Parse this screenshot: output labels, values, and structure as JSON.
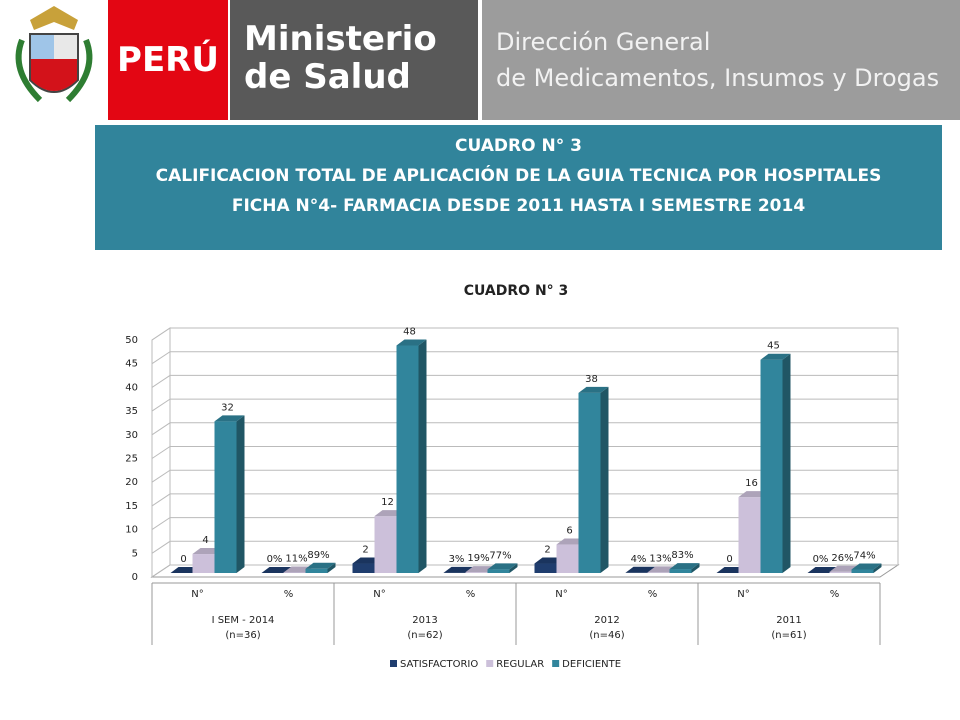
{
  "header": {
    "country": "PERÚ",
    "ministry": [
      "Ministerio",
      "de Salud"
    ],
    "direction": [
      "Dirección General",
      "de Medicamentos, Insumos y Drogas"
    ]
  },
  "banner": {
    "lines": [
      "CUADRO N° 3",
      "CALIFICACION TOTAL DE APLICACIÓN DE LA GUIA TECNICA POR HOSPITALES",
      "FICHA N°4- FARMACIA   DESDE 2011 HASTA I SEMESTRE 2014"
    ]
  },
  "chart_data": {
    "type": "bar3d",
    "title": "CUADRO N° 3",
    "categories": [
      "N°",
      "%",
      "N°",
      "%",
      "N°",
      "%",
      "N°",
      "%"
    ],
    "groups": [
      {
        "label": "I SEM - 2014",
        "sub": "(n=36)"
      },
      {
        "label": "2013",
        "sub": "(n=62)"
      },
      {
        "label": "2012",
        "sub": "(n=46)"
      },
      {
        "label": "2011",
        "sub": "(n=61)"
      }
    ],
    "series": [
      {
        "name": "SATISFACTORIO",
        "color": "#1f3d6e",
        "values": [
          0,
          0,
          2,
          0.03,
          2,
          0.04,
          0,
          0
        ],
        "value_labels": [
          "0",
          "0%",
          "2",
          "3%",
          "2",
          "4%",
          "0",
          "0%"
        ]
      },
      {
        "name": "REGULAR",
        "color": "#ccc0da",
        "values": [
          4,
          0.11,
          12,
          0.19,
          6,
          0.13,
          16,
          0.26
        ],
        "value_labels": [
          "4",
          "11%",
          "12",
          "19%",
          "6",
          "13%",
          "16",
          "26%"
        ]
      },
      {
        "name": "DEFICIENTE",
        "color": "#31859c",
        "values": [
          32,
          0.89,
          48,
          0.77,
          38,
          0.83,
          45,
          0.74
        ],
        "value_labels": [
          "32",
          "89%",
          "48",
          "77%",
          "38",
          "83%",
          "45",
          "74%"
        ]
      }
    ],
    "ylim": [
      0,
      50
    ],
    "yticks": [
      0,
      5,
      10,
      15,
      20,
      25,
      30,
      35,
      40,
      45,
      50
    ],
    "grid": true,
    "legend": "bottom"
  }
}
